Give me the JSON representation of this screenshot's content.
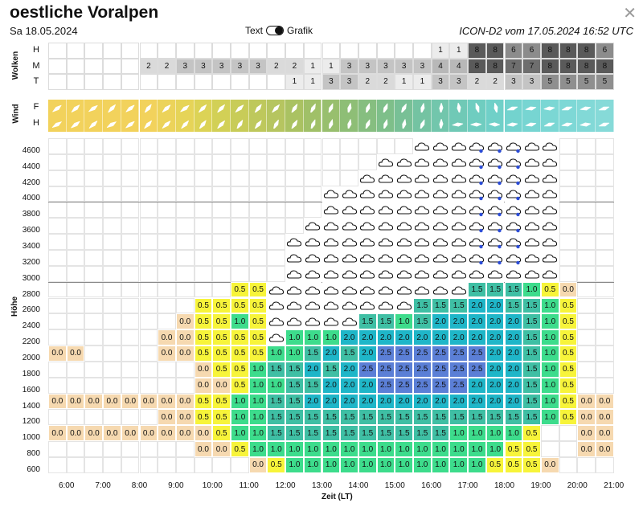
{
  "header": {
    "title": "oestliche Voralpen",
    "date": "Sa 18.05.2024",
    "toggle_left": "Text",
    "toggle_right": "Grafik",
    "model_run": "ICON-D2 vom 17.05.2024 16:52 UTC",
    "close_symbol": "✕"
  },
  "clouds": {
    "label": "Wolken",
    "rows": [
      "H",
      "M",
      "T"
    ],
    "values": {
      "H": [
        "",
        "",
        "",
        "",
        "",
        "",
        "",
        "",
        "",
        "",
        "",
        "",
        "",
        "",
        "",
        "",
        "",
        "",
        "",
        "",
        "",
        "1",
        "1",
        "8",
        "8",
        "6",
        "6",
        "8",
        "8",
        "8",
        "6"
      ],
      "M": [
        "",
        "",
        "",
        "",
        "",
        "2",
        "2",
        "3",
        "3",
        "3",
        "3",
        "3",
        "2",
        "2",
        "1",
        "1",
        "3",
        "3",
        "3",
        "3",
        "3",
        "4",
        "4",
        "8",
        "8",
        "7",
        "7",
        "8",
        "8",
        "8",
        "8"
      ],
      "T": [
        "",
        "",
        "",
        "",
        "",
        "",
        "",
        "",
        "",
        "",
        "",
        "",
        "",
        "1",
        "1",
        "3",
        "3",
        "2",
        "2",
        "1",
        "1",
        "3",
        "3",
        "2",
        "2",
        "3",
        "3",
        "5",
        "5",
        "5",
        "5"
      ]
    }
  },
  "wind": {
    "label": "Wind",
    "rows": [
      "F",
      "H"
    ]
  },
  "main": {
    "y_title": "Höhe",
    "x_title": "Zeit (LT)",
    "y_ticks": [
      "4600",
      "4400",
      "4200",
      "4000",
      "3800",
      "3600",
      "3400",
      "3200",
      "3000",
      "2800",
      "2600",
      "2400",
      "2200",
      "2000",
      "1800",
      "1600",
      "1400",
      "1200",
      "1000",
      "800",
      "600"
    ],
    "x_ticks": [
      "6:00",
      "7:00",
      "8:00",
      "9:00",
      "10:00",
      "11:00",
      "12:00",
      "13:00",
      "14:00",
      "15:00",
      "16:00",
      "17:00",
      "18:00",
      "19:00",
      "20:00",
      "21:00"
    ]
  },
  "grid_rows": [
    "...........................................................",
    ".........................................................",
    "......................................KKKKKKK.............",
    ".....................................KKKKKKKK.............",
    ".................................KKKKKKKKKKKKKK...........",
    ".................................KKKKKKKKKKKKKK...........",
    "..............................KKKKKKKKKKKKKKKK............",
    "..........................KKKKKKKKKKKKKKKKKKKK............",
    "..........................KKKKKKKKKKKKKKKKKKKK............",
    "..........................KKKKKKKKKKKKKKKKKKKK............",
    "........................KKKKKKKKKKKKKKKKKKKKKK............"
  ],
  "legend_colors": {
    "0.0": "#f6d9b0",
    "0.5": "#f7f43a",
    "1.0": "#3ddc8c",
    "1.5": "#3fbfa4",
    "2.0": "#1fb6c8",
    "2.5": "#5b7fd6"
  },
  "thermal_rows": [
    {
      "alt": "2800",
      "cells": [
        "",
        "",
        "",
        "",
        "",
        "",
        "",
        "",
        "",
        "",
        "0.5",
        "0.5",
        "",
        "",
        "",
        "",
        "",
        "",
        "",
        "",
        "",
        "",
        "",
        "1.5",
        "1.5",
        "1.5",
        "1.0",
        "0.5",
        "0.0",
        "",
        ""
      ]
    },
    {
      "alt": "2600",
      "cells": [
        "",
        "",
        "",
        "",
        "",
        "",
        "",
        "",
        "0.5",
        "0.5",
        "0.5",
        "0.5",
        "",
        "",
        "",
        "",
        "",
        "",
        "",
        "",
        "1.5",
        "1.5",
        "1.5",
        "2.0",
        "2.0",
        "1.5",
        "1.5",
        "1.0",
        "0.5",
        "",
        ""
      ]
    },
    {
      "alt": "2400",
      "cells": [
        "",
        "",
        "",
        "",
        "",
        "",
        "",
        "0.0",
        "0.5",
        "0.5",
        "1.0",
        "0.5",
        "",
        "",
        "",
        "",
        "",
        "1.5",
        "1.5",
        "1.0",
        "1.5",
        "2.0",
        "2.0",
        "2.0",
        "2.0",
        "2.0",
        "1.5",
        "1.0",
        "0.5",
        "",
        ""
      ]
    },
    {
      "alt": "2200",
      "cells": [
        "",
        "",
        "",
        "",
        "",
        "",
        "0.0",
        "0.0",
        "0.5",
        "0.5",
        "0.5",
        "0.5",
        "",
        "1.0",
        "1.0",
        "1.0",
        "2.0",
        "2.0",
        "2.0",
        "2.0",
        "2.0",
        "2.0",
        "2.0",
        "2.0",
        "2.0",
        "2.0",
        "1.5",
        "1.0",
        "0.5",
        "",
        ""
      ]
    },
    {
      "alt": "2000",
      "cells": [
        "0.0",
        "0.0",
        "",
        "",
        "",
        "",
        "0.0",
        "0.0",
        "0.5",
        "0.5",
        "0.5",
        "0.5",
        "1.0",
        "1.0",
        "1.5",
        "2.0",
        "1.5",
        "2.0",
        "2.5",
        "2.5",
        "2.5",
        "2.5",
        "2.5",
        "2.5",
        "2.0",
        "2.0",
        "1.5",
        "1.0",
        "0.5",
        "",
        ""
      ]
    },
    {
      "alt": "1800",
      "cells": [
        "",
        "",
        "",
        "",
        "",
        "",
        "",
        "",
        "0.0",
        "0.5",
        "0.5",
        "1.0",
        "1.5",
        "1.5",
        "2.0",
        "1.5",
        "2.0",
        "2.5",
        "2.5",
        "2.5",
        "2.5",
        "2.5",
        "2.5",
        "2.5",
        "2.0",
        "2.0",
        "1.5",
        "1.0",
        "0.5",
        "",
        ""
      ]
    },
    {
      "alt": "1600",
      "cells": [
        "",
        "",
        "",
        "",
        "",
        "",
        "",
        "",
        "0.0",
        "0.0",
        "0.5",
        "1.0",
        "1.0",
        "1.5",
        "1.5",
        "2.0",
        "2.0",
        "2.0",
        "2.5",
        "2.5",
        "2.5",
        "2.5",
        "2.5",
        "2.0",
        "2.0",
        "2.0",
        "1.5",
        "1.0",
        "0.5",
        "",
        ""
      ]
    },
    {
      "alt": "1400",
      "cells": [
        "0.0",
        "0.0",
        "0.0",
        "0.0",
        "0.0",
        "0.0",
        "0.0",
        "0.0",
        "0.5",
        "0.5",
        "1.0",
        "1.0",
        "1.5",
        "1.5",
        "2.0",
        "2.0",
        "2.0",
        "2.0",
        "2.0",
        "2.0",
        "2.0",
        "2.0",
        "2.0",
        "2.0",
        "2.0",
        "2.0",
        "1.5",
        "1.0",
        "0.5",
        "0.0",
        "0.0"
      ]
    },
    {
      "alt": "1200",
      "cells": [
        "",
        "",
        "",
        "",
        "",
        "",
        "0.0",
        "0.0",
        "0.5",
        "0.5",
        "1.0",
        "1.0",
        "1.5",
        "1.5",
        "1.5",
        "1.5",
        "1.5",
        "1.5",
        "1.5",
        "1.5",
        "1.5",
        "1.5",
        "1.5",
        "1.5",
        "1.5",
        "1.5",
        "1.5",
        "1.0",
        "0.5",
        "0.0",
        "0.0"
      ]
    },
    {
      "alt": "1000",
      "cells": [
        "0.0",
        "0.0",
        "0.0",
        "0.0",
        "0.0",
        "0.0",
        "0.0",
        "0.0",
        "0.0",
        "0.5",
        "1.0",
        "1.0",
        "1.5",
        "1.5",
        "1.5",
        "1.5",
        "1.5",
        "1.5",
        "1.5",
        "1.5",
        "1.5",
        "1.5",
        "1.0",
        "1.0",
        "1.0",
        "1.0",
        "0.5",
        "",
        "",
        "0.0",
        "0.0"
      ]
    },
    {
      "alt": "800",
      "cells": [
        "",
        "",
        "",
        "",
        "",
        "",
        "",
        "",
        "0.0",
        "0.0",
        "0.5",
        "1.0",
        "1.0",
        "1.0",
        "1.0",
        "1.0",
        "1.0",
        "1.0",
        "1.0",
        "1.0",
        "1.0",
        "1.0",
        "1.0",
        "1.0",
        "1.0",
        "0.5",
        "0.5",
        "",
        "",
        "0.0",
        "0.0"
      ]
    },
    {
      "alt": "600",
      "cells": [
        "",
        "",
        "",
        "",
        "",
        "",
        "",
        "",
        "",
        "",
        "",
        "0.0",
        "0.5",
        "1.0",
        "1.0",
        "1.0",
        "1.0",
        "1.0",
        "1.0",
        "1.0",
        "1.0",
        "1.0",
        "1.0",
        "1.0",
        "0.5",
        "0.5",
        "0.5",
        "0.0",
        "",
        "",
        ""
      ]
    }
  ]
}
